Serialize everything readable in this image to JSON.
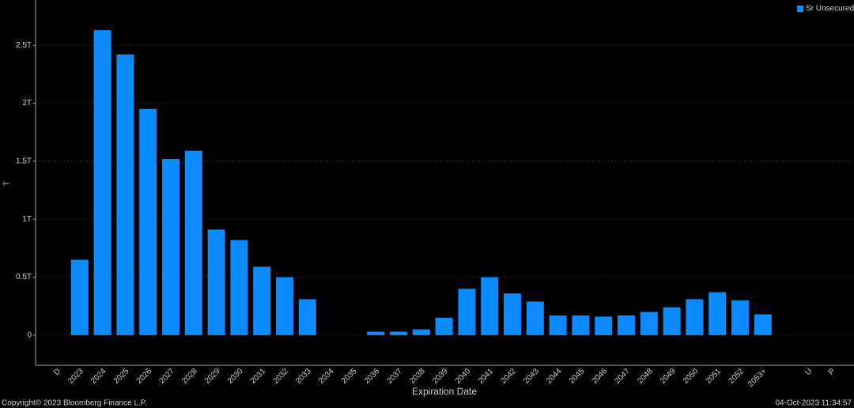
{
  "chart_data": {
    "type": "bar",
    "y_label": "T",
    "x_label": "Expiration Date",
    "legend": "top-right",
    "series": [
      {
        "name": "Sr Unsecured",
        "color": "#0b8bff",
        "values": [
          0,
          0.65,
          2.63,
          2.42,
          1.95,
          1.52,
          1.59,
          0.91,
          0.82,
          0.59,
          0.5,
          0.31,
          0,
          0,
          0.03,
          0.03,
          0.05,
          0.15,
          0.4,
          0.5,
          0.36,
          0.29,
          0.17,
          0.17,
          0.16,
          0.17,
          0.2,
          0.24,
          0.31,
          0.37,
          0.3,
          0.18,
          null,
          0,
          0
        ]
      }
    ],
    "categories": [
      "D",
      "2023",
      "2024",
      "2025",
      "2026",
      "2027",
      "2028",
      "2029",
      "2030",
      "2031",
      "2032",
      "2033",
      "2034",
      "2035",
      "2036",
      "2037",
      "2038",
      "2039",
      "2040",
      "2041",
      "2042",
      "2043",
      "2044",
      "2045",
      "2046",
      "2047",
      "2048",
      "2049",
      "2050",
      "2051",
      "2052",
      "2053+",
      null,
      "U",
      "P"
    ],
    "ylim": [
      -0.26,
      2.89
    ],
    "yticks": [
      0,
      {
        "value": 0.5,
        "label": "0.5T"
      },
      {
        "value": 1,
        "label": "1T"
      },
      {
        "value": 1.5,
        "label": "1.5T"
      },
      {
        "value": 2,
        "label": "2T"
      },
      {
        "value": 2.5,
        "label": "2.5T"
      }
    ],
    "grid": true
  },
  "footer": {
    "copyright": "Copyright© 2023 Bloomberg Finance L.P.",
    "timestamp": "04-Oct-2023 11:34:57"
  }
}
